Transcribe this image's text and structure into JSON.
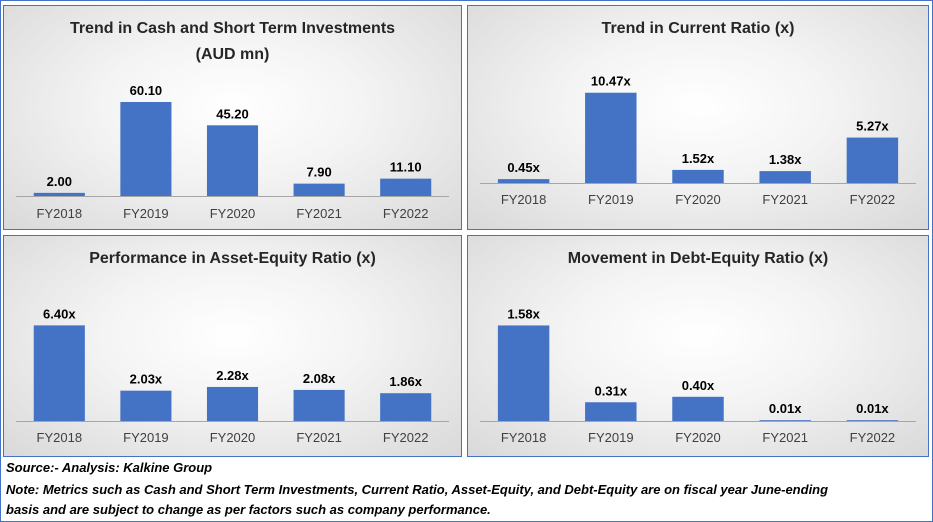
{
  "colors": {
    "bar": "#4472c4",
    "text": "#262626",
    "axis": "#404040",
    "border": "#4472c4"
  },
  "chart_data": [
    {
      "type": "bar",
      "title": "Trend in Cash and Short Term Investments",
      "subtitle": "(AUD mn)",
      "categories": [
        "FY2018",
        "FY2019",
        "FY2020",
        "FY2021",
        "FY2022"
      ],
      "values": [
        2.0,
        60.1,
        45.2,
        7.9,
        11.1
      ],
      "data_labels": [
        "2.00",
        "60.10",
        "45.20",
        "7.90",
        "11.10"
      ],
      "ylim": [
        0,
        78
      ],
      "grid": false,
      "legend": "none"
    },
    {
      "type": "bar",
      "title": "Trend in Current Ratio (x)",
      "subtitle": "",
      "categories": [
        "FY2018",
        "FY2019",
        "FY2020",
        "FY2021",
        "FY2022"
      ],
      "values": [
        0.45,
        10.47,
        1.52,
        1.38,
        5.27
      ],
      "data_labels": [
        "0.45x",
        "10.47x",
        "1.52x",
        "1.38x",
        "5.27x"
      ],
      "ylim": [
        0,
        14.5
      ],
      "grid": false,
      "legend": "none"
    },
    {
      "type": "bar",
      "title": "Performance in Asset-Equity Ratio (x)",
      "subtitle": "",
      "categories": [
        "FY2018",
        "FY2019",
        "FY2020",
        "FY2021",
        "FY2022"
      ],
      "values": [
        6.4,
        2.03,
        2.28,
        2.08,
        1.86
      ],
      "data_labels": [
        "6.40x",
        "2.03x",
        "2.28x",
        "2.08x",
        "1.86x"
      ],
      "ylim": [
        0,
        8.5
      ],
      "grid": false,
      "legend": "none"
    },
    {
      "type": "bar",
      "title": "Movement in Debt-Equity Ratio (x)",
      "subtitle": "",
      "categories": [
        "FY2018",
        "FY2019",
        "FY2020",
        "FY2021",
        "FY2022"
      ],
      "values": [
        1.58,
        0.31,
        0.4,
        0.01,
        0.01
      ],
      "data_labels": [
        "1.58x",
        "0.31x",
        "0.40x",
        "0.01x",
        "0.01x"
      ],
      "ylim": [
        0,
        2.1
      ],
      "grid": false,
      "legend": "none"
    }
  ],
  "footer": {
    "source": "Source:- Analysis: Kalkine Group",
    "note_line1": "Note: Metrics such as Cash and Short Term Investments, Current Ratio, Asset-Equity, and Debt-Equity are on fiscal year June-ending",
    "note_line2": "basis and are subject to change as per factors such as company performance."
  }
}
